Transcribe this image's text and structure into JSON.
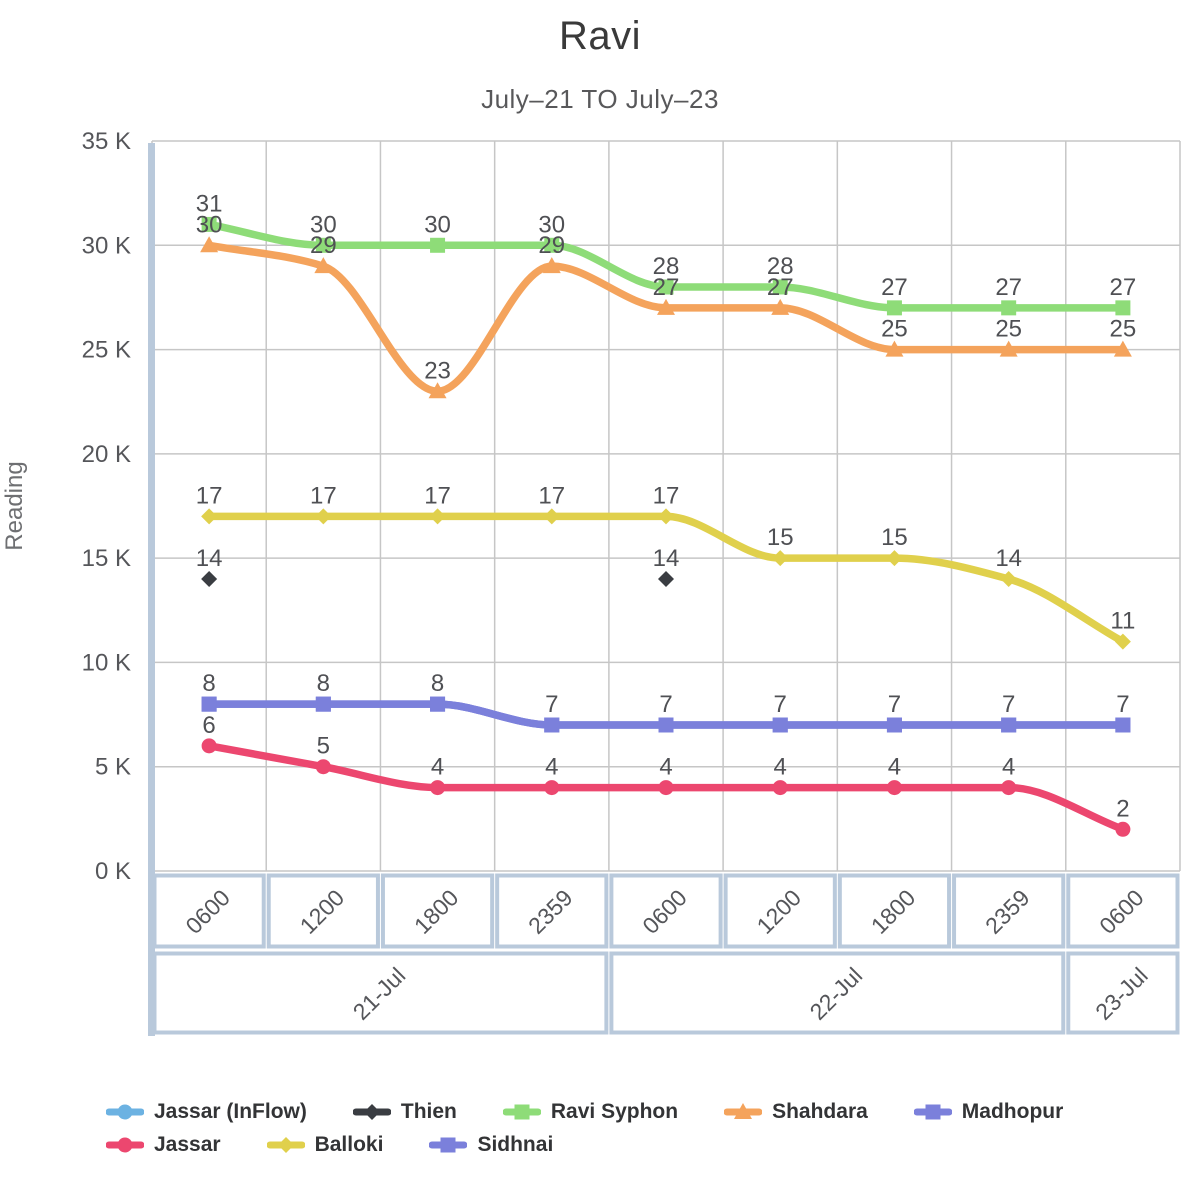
{
  "header": {
    "title": "Ravi",
    "subtitle": "July–21 TO July–23"
  },
  "chart_data": {
    "type": "line",
    "title": "Ravi",
    "subtitle": "July–21 TO July–23",
    "xlabel": "",
    "ylabel": "Reading",
    "y_unit": "K",
    "ylim": [
      0,
      35
    ],
    "y_tick_labels": [
      "0 K",
      "5 K",
      "10 K",
      "15 K",
      "20 K",
      "25 K",
      "30 K",
      "35 K"
    ],
    "grid": true,
    "grid_color": "#c6c6c6",
    "axis_box_border_color": "#b9c9db",
    "label_color": "#4f5054",
    "x_categories": [
      "0600",
      "1200",
      "1800",
      "2359",
      "0600",
      "1200",
      "1800",
      "2359",
      "0600"
    ],
    "x_groups": [
      {
        "label": "21-Jul",
        "start": 0,
        "span": 4
      },
      {
        "label": "22-Jul",
        "start": 4,
        "span": 4
      },
      {
        "label": "23-Jul",
        "start": 8,
        "span": 1
      }
    ],
    "legend_position": "bottom",
    "series": [
      {
        "name": "Jassar (InFlow)",
        "color": "#6cb2e2",
        "marker": "circle",
        "values": [
          null,
          null,
          null,
          null,
          null,
          null,
          null,
          null,
          null
        ],
        "points_only": false,
        "show_labels": false
      },
      {
        "name": "Thien",
        "color": "#3a3d42",
        "marker": "diamond",
        "values": [
          14,
          null,
          null,
          null,
          14,
          null,
          null,
          null,
          null
        ],
        "points_only": true,
        "show_labels": true
      },
      {
        "name": "Ravi Syphon",
        "color": "#8edc78",
        "marker": "square",
        "values": [
          31,
          30,
          30,
          30,
          28,
          28,
          27,
          27,
          27
        ],
        "points_only": false,
        "show_labels": true
      },
      {
        "name": "Shahdara",
        "color": "#f4a35c",
        "marker": "triangle",
        "values": [
          30,
          29,
          23,
          29,
          27,
          27,
          25,
          25,
          25
        ],
        "points_only": false,
        "show_labels": true
      },
      {
        "name": "Madhopur",
        "color": "#7b80db",
        "marker": "square",
        "values": [
          8,
          8,
          8,
          7,
          7,
          7,
          7,
          7,
          7
        ],
        "points_only": false,
        "show_labels": false
      },
      {
        "name": "Jassar",
        "color": "#ec476f",
        "marker": "circle",
        "values": [
          6,
          5,
          4,
          4,
          4,
          4,
          4,
          4,
          2
        ],
        "points_only": false,
        "show_labels": true
      },
      {
        "name": "Balloki",
        "color": "#e0d04c",
        "marker": "diamond",
        "values": [
          17,
          17,
          17,
          17,
          17,
          15,
          15,
          14,
          11
        ],
        "points_only": false,
        "show_labels": true
      },
      {
        "name": "Sidhnai",
        "color": "#7b80db",
        "marker": "square",
        "values": [
          8,
          8,
          8,
          7,
          7,
          7,
          7,
          7,
          7
        ],
        "points_only": false,
        "show_labels": true
      }
    ]
  }
}
